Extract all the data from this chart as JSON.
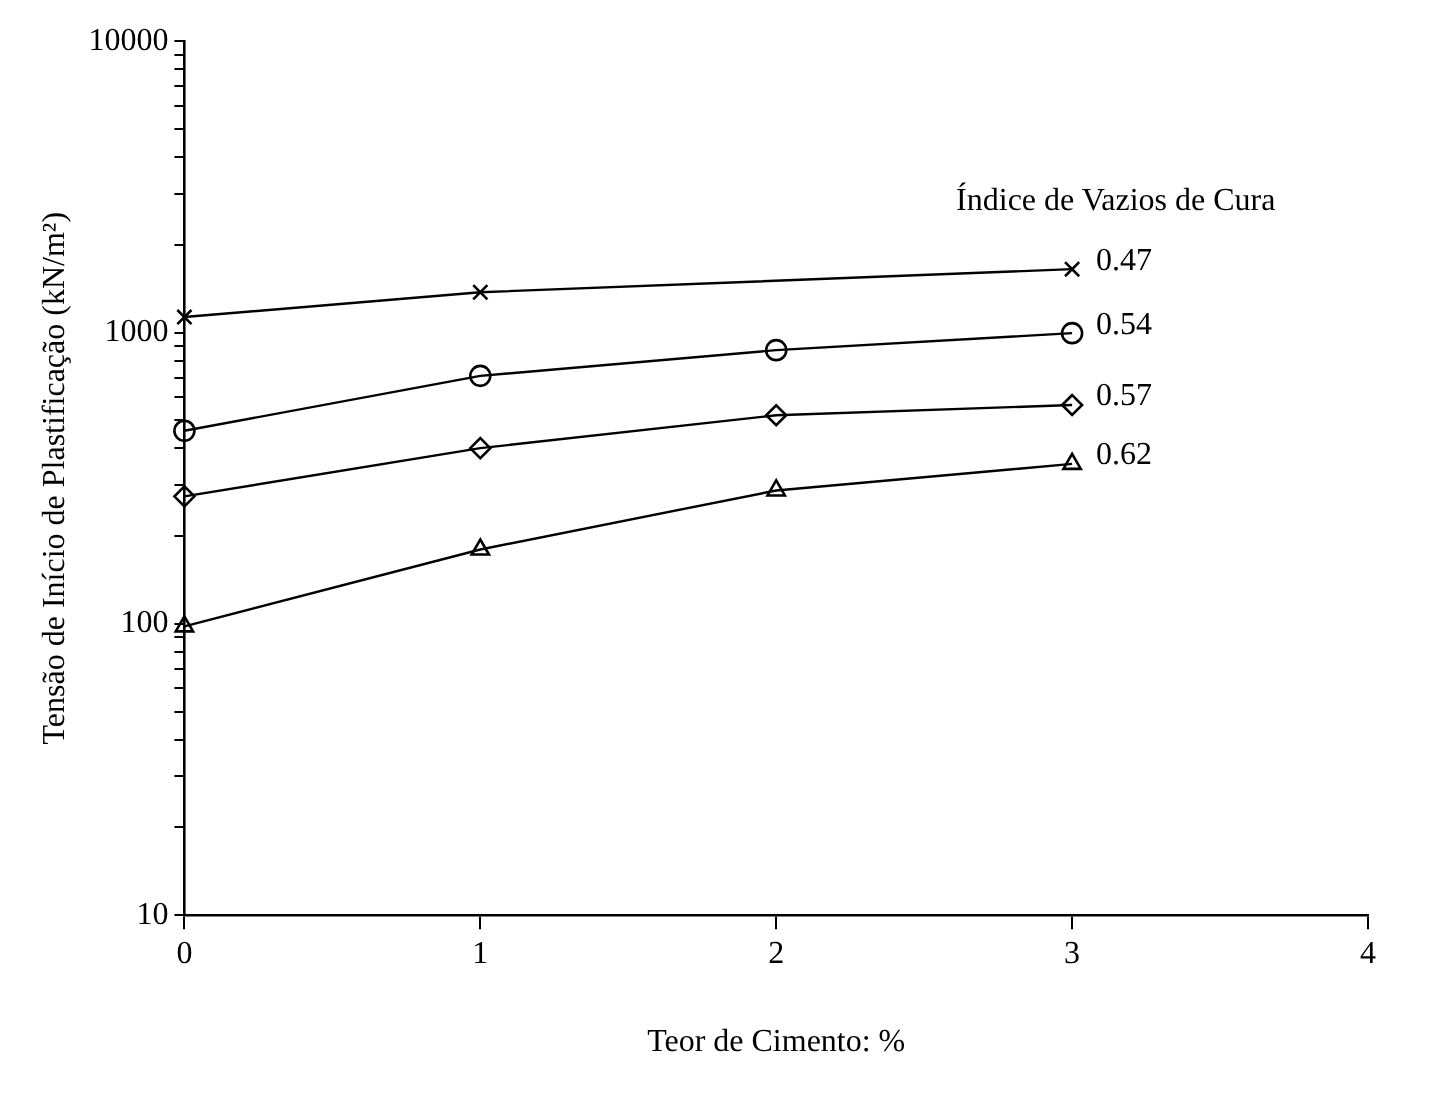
{
  "chart_data": {
    "type": "line",
    "xlabel": "Teor de Cimento: %",
    "ylabel": "Tensão de Início de Plastificação (kN/m²)",
    "legend_title": "Índice de Vazios de Cura",
    "x": [
      0,
      1,
      2,
      3
    ],
    "series": [
      {
        "name": "0.47",
        "color": "#000000",
        "marker": "cross",
        "values": [
          1130,
          1375,
          null,
          1650
        ]
      },
      {
        "name": "0.54",
        "color": "#000000",
        "marker": "circle",
        "values": [
          460,
          710,
          870,
          995
        ]
      },
      {
        "name": "0.57",
        "color": "#000000",
        "marker": "diamond",
        "values": [
          274,
          401,
          520,
          564
        ]
      },
      {
        "name": "0.62",
        "color": "#000000",
        "marker": "triangle",
        "values": [
          98,
          180,
          287,
          354
        ]
      }
    ],
    "log": "y",
    "grid": false,
    "line_style": "solid",
    "xlim": [
      0,
      4
    ],
    "xticks": [
      0,
      1,
      2,
      3,
      4
    ],
    "ylim": [
      10,
      10000
    ],
    "yticks": [
      10,
      {
        "value": 20,
        "label": null
      },
      {
        "value": 30,
        "label": null
      },
      {
        "value": 40,
        "label": null
      },
      {
        "value": 50,
        "label": null
      },
      {
        "value": 60,
        "label": null
      },
      {
        "value": 70,
        "label": null
      },
      {
        "value": 80,
        "label": null
      },
      {
        "value": 90,
        "label": null
      },
      100,
      {
        "value": 200,
        "label": null
      },
      {
        "value": 300,
        "label": null
      },
      {
        "value": 400,
        "label": null
      },
      {
        "value": 500,
        "label": null
      },
      {
        "value": 600,
        "label": null
      },
      {
        "value": 700,
        "label": null
      },
      {
        "value": 800,
        "label": null
      },
      {
        "value": 900,
        "label": null
      },
      1000,
      {
        "value": 2000,
        "label": null
      },
      {
        "value": 3000,
        "label": null
      },
      {
        "value": 4000,
        "label": null
      },
      {
        "value": 5000,
        "label": null
      },
      {
        "value": 6000,
        "label": null
      },
      {
        "value": 7000,
        "label": null
      },
      {
        "value": 8000,
        "label": null
      },
      {
        "value": 9000,
        "label": null
      },
      10000
    ]
  }
}
